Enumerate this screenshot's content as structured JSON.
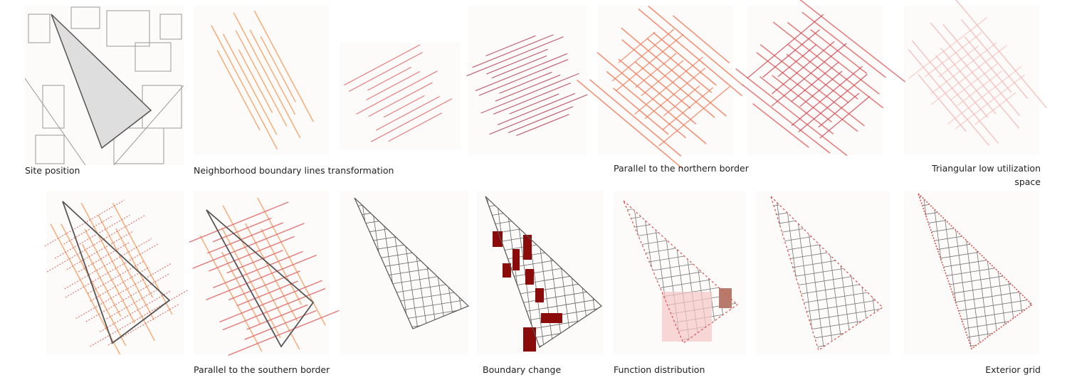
{
  "captions": {
    "site_position": "Site position",
    "neighborhood": "Neighborhood boundary lines transformation",
    "northern": "Parallel to the northern border",
    "triangular": [
      "Triangular low utilization",
      "space"
    ],
    "southern": "Parallel to the southern border",
    "boundary_change": "Boundary change",
    "function_distribution": "Function distribution",
    "exterior_grid": "Exterior grid"
  }
}
